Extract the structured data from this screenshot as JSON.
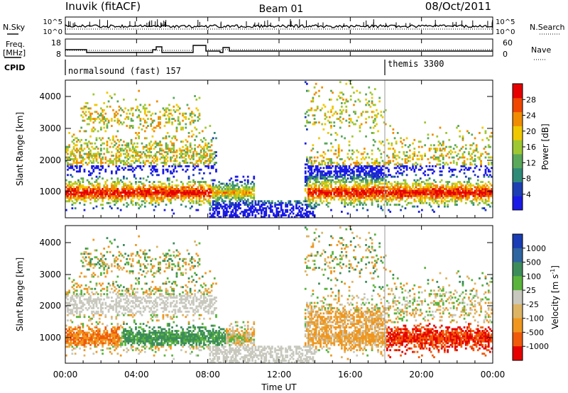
{
  "header": {
    "station": "Inuvik (fitACF)",
    "beam": "Beam 01",
    "date": "08/Oct/2011"
  },
  "top_panels": {
    "nsky_label": "N.Sky",
    "nsky_ticks": [
      "10^5",
      "10^0"
    ],
    "nsearch_label": "N.Search",
    "nsearch_ticks": [
      "10^5",
      "10^0"
    ],
    "freq_label_1": "Freq.",
    "freq_label_2": "[MHz]",
    "freq_ticks": [
      "18",
      "8"
    ],
    "nave_label": "Nave",
    "nave_ticks": [
      "60",
      "0"
    ],
    "cpid_label": "CPID",
    "cpid_segments": [
      {
        "name": "normalsound (fast) 157",
        "start_hour": 0
      },
      {
        "name": "themis 3300",
        "start_hour": 18
      }
    ]
  },
  "chart_data": [
    {
      "type": "heatmap",
      "title": "",
      "xlabel": "Time UT",
      "ylabel": "Slant Range [km]",
      "xlim": [
        0,
        24
      ],
      "ylim": [
        180,
        4500
      ],
      "yticks": [
        "1000",
        "2000",
        "3000",
        "4000"
      ],
      "colorbar_label": "Power [dB]",
      "colorbar_ticks": [
        "4",
        "8",
        "12",
        "16",
        "20",
        "24",
        "28"
      ],
      "colorbar_colors": [
        "#1a1ae6",
        "#1e3fb4",
        "#2f8a78",
        "#5aa85a",
        "#9ec832",
        "#f0c800",
        "#f08c00",
        "#f04600",
        "#e60000"
      ],
      "colors": {
        "low": "#1a1ae6",
        "mid": "#5aa85a",
        "high": "#e60000"
      }
    },
    {
      "type": "heatmap",
      "title": "",
      "xlabel": "Time UT",
      "ylabel": "Slant Range [km]",
      "xlim": [
        0,
        24
      ],
      "ylim": [
        180,
        4500
      ],
      "yticks": [
        "1000",
        "2000",
        "3000",
        "4000"
      ],
      "colorbar_label": "Velocity [m s^-1]",
      "colorbar_ticks": [
        "1000",
        "500",
        "100",
        "25",
        "-25",
        "-100",
        "-500",
        "-1000"
      ],
      "colorbar_colors": [
        "#1a3cb4",
        "#2e64a0",
        "#3c8c5a",
        "#5ab43c",
        "#c8c8be",
        "#dcb464",
        "#f0961e",
        "#f05a0a",
        "#e60000"
      ],
      "ground_scatter_color": "#c8c8be"
    }
  ],
  "x_axis": {
    "label": "Time UT",
    "ticks": [
      "00:00",
      "04:00",
      "08:00",
      "12:00",
      "16:00",
      "20:00",
      "00:00"
    ]
  }
}
